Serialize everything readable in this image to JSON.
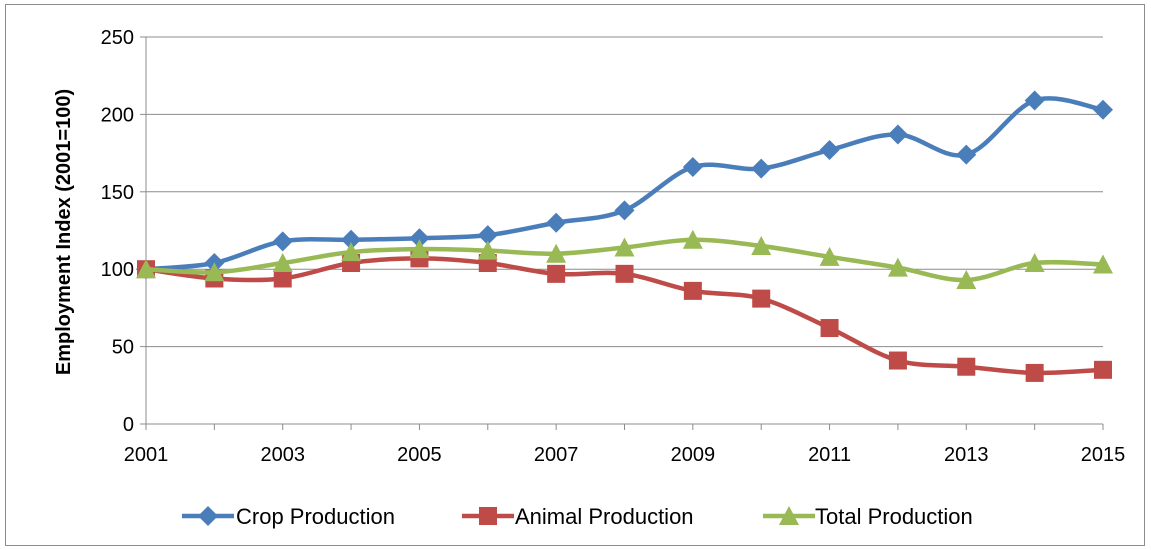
{
  "chart_data": {
    "type": "line",
    "title": "",
    "xlabel": "",
    "ylabel": "Employment Index (2001=100)",
    "x": [
      2001,
      2002,
      2003,
      2004,
      2005,
      2006,
      2007,
      2008,
      2009,
      2010,
      2011,
      2012,
      2013,
      2014,
      2015
    ],
    "x_tick_labels": [
      "2001",
      "2003",
      "2005",
      "2007",
      "2009",
      "2011",
      "2013",
      "2015"
    ],
    "ylim": [
      0,
      250
    ],
    "y_ticks": [
      0,
      50,
      100,
      150,
      200,
      250
    ],
    "grid": "horizontal",
    "legend_position": "bottom",
    "series": [
      {
        "name": "Crop Production",
        "color": "#4a7ebb",
        "marker": "diamond",
        "values": [
          100,
          104,
          118,
          119,
          120,
          122,
          130,
          138,
          166,
          165,
          177,
          187,
          174,
          209,
          203
        ]
      },
      {
        "name": "Animal Production",
        "color": "#be4b48",
        "marker": "square",
        "values": [
          100,
          94,
          94,
          104,
          107,
          104,
          97,
          97,
          86,
          81,
          62,
          41,
          37,
          33,
          35
        ]
      },
      {
        "name": "Total Production",
        "color": "#98b954",
        "marker": "triangle",
        "values": [
          100,
          98,
          104,
          111,
          113,
          112,
          110,
          114,
          119,
          115,
          108,
          101,
          93,
          104,
          103
        ]
      }
    ]
  }
}
